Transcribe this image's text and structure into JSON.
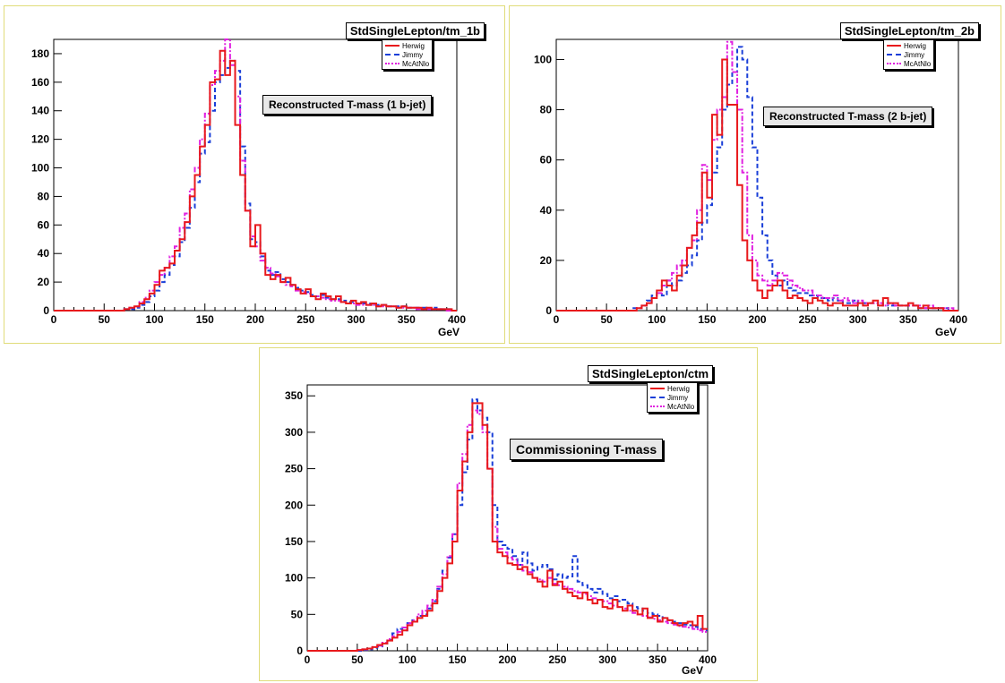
{
  "colors": {
    "Herwig": "#e8191c",
    "Jimmy": "#1a3fd8",
    "McAtNlo": "#e020e0"
  },
  "chart_data": [
    {
      "type": "line",
      "title": "StdSingleLepton/tm_1b",
      "annotation": "Reconstructed T-mass (1 b-jet)",
      "xlabel": "GeV",
      "ylabel": "",
      "xlim": [
        0,
        400
      ],
      "ylim": [
        0,
        190
      ],
      "xticks": [
        0,
        50,
        100,
        150,
        200,
        250,
        300,
        350,
        400
      ],
      "yticks": [
        0,
        20,
        40,
        60,
        80,
        100,
        120,
        140,
        160,
        180
      ],
      "legend": "top-right",
      "bin_width": 5,
      "series": [
        {
          "name": "Herwig",
          "style": "solid",
          "x_start": 0,
          "values": [
            0,
            0,
            0,
            0,
            0,
            0,
            0,
            0,
            0,
            0,
            0,
            0,
            0,
            0,
            1,
            2,
            3,
            5,
            8,
            12,
            18,
            28,
            30,
            33,
            42,
            50,
            62,
            80,
            95,
            115,
            130,
            160,
            162,
            182,
            165,
            175,
            130,
            95,
            70,
            45,
            60,
            40,
            25,
            22,
            25,
            20,
            23,
            18,
            15,
            12,
            15,
            10,
            8,
            12,
            10,
            8,
            10,
            6,
            5,
            7,
            5,
            6,
            4,
            5,
            3,
            4,
            3,
            3,
            2,
            3,
            2,
            2,
            2,
            1,
            2,
            1,
            1,
            1,
            1,
            0
          ]
        },
        {
          "name": "Jimmy",
          "style": "dashed",
          "x_start": 0,
          "values": [
            0,
            0,
            0,
            0,
            0,
            0,
            0,
            0,
            0,
            0,
            0,
            0,
            0,
            0,
            1,
            1,
            2,
            4,
            6,
            10,
            14,
            20,
            25,
            32,
            38,
            48,
            58,
            72,
            90,
            110,
            118,
            140,
            160,
            165,
            170,
            175,
            168,
            115,
            75,
            50,
            48,
            38,
            28,
            25,
            27,
            22,
            20,
            18,
            16,
            14,
            13,
            11,
            10,
            11,
            9,
            8,
            8,
            7,
            6,
            6,
            5,
            5,
            5,
            4,
            4,
            4,
            3,
            3,
            3,
            3,
            2,
            2,
            2,
            2,
            1,
            2,
            1,
            1,
            1,
            0
          ]
        },
        {
          "name": "McAtNlo",
          "style": "dashdot",
          "x_start": 0,
          "values": [
            0,
            0,
            0,
            0,
            0,
            0,
            0,
            0,
            0,
            0,
            0,
            0,
            0,
            0,
            1,
            2,
            3,
            6,
            9,
            14,
            20,
            25,
            30,
            38,
            45,
            58,
            68,
            85,
            100,
            120,
            138,
            158,
            168,
            175,
            190,
            172,
            150,
            105,
            70,
            52,
            45,
            35,
            30,
            26,
            24,
            20,
            18,
            17,
            14,
            13,
            12,
            10,
            10,
            9,
            8,
            7,
            7,
            6,
            5,
            5,
            4,
            4,
            4,
            4,
            3,
            3,
            3,
            3,
            2,
            2,
            2,
            2,
            1,
            1,
            1,
            1,
            1,
            1,
            0,
            0
          ]
        }
      ]
    },
    {
      "type": "line",
      "title": "StdSingleLepton/tm_2b",
      "annotation": "Reconstructed T-mass (2 b-jet)",
      "xlabel": "GeV",
      "ylabel": "",
      "xlim": [
        0,
        400
      ],
      "ylim": [
        0,
        108
      ],
      "xticks": [
        0,
        50,
        100,
        150,
        200,
        250,
        300,
        350,
        400
      ],
      "yticks": [
        0,
        20,
        40,
        60,
        80,
        100
      ],
      "legend": "top-right",
      "bin_width": 5,
      "series": [
        {
          "name": "Herwig",
          "style": "solid",
          "x_start": 0,
          "values": [
            0,
            0,
            0,
            0,
            0,
            0,
            0,
            0,
            0,
            0,
            0,
            0,
            0,
            0,
            0,
            0,
            1,
            2,
            3,
            5,
            8,
            12,
            10,
            8,
            14,
            18,
            25,
            30,
            35,
            55,
            45,
            78,
            70,
            100,
            82,
            82,
            50,
            28,
            20,
            12,
            8,
            5,
            8,
            10,
            12,
            8,
            5,
            6,
            5,
            4,
            3,
            5,
            4,
            3,
            2,
            3,
            3,
            2,
            2,
            2,
            3,
            2,
            3,
            4,
            2,
            5,
            3,
            3,
            2,
            2,
            3,
            2,
            1,
            2,
            1,
            1,
            1,
            0,
            0,
            0
          ]
        },
        {
          "name": "Jimmy",
          "style": "dashed",
          "x_start": 0,
          "values": [
            0,
            0,
            0,
            0,
            0,
            0,
            0,
            0,
            0,
            0,
            0,
            0,
            0,
            0,
            0,
            1,
            1,
            2,
            4,
            6,
            8,
            6,
            12,
            10,
            12,
            15,
            18,
            22,
            28,
            35,
            42,
            55,
            65,
            80,
            90,
            95,
            105,
            100,
            85,
            65,
            45,
            30,
            20,
            14,
            10,
            12,
            9,
            8,
            7,
            7,
            6,
            6,
            5,
            5,
            4,
            5,
            4,
            3,
            3,
            4,
            3,
            3,
            3,
            3,
            2,
            3,
            2,
            2,
            2,
            2,
            2,
            2,
            1,
            1,
            1,
            1,
            1,
            1,
            0,
            0
          ]
        },
        {
          "name": "McAtNlo",
          "style": "dashdot",
          "x_start": 0,
          "values": [
            0,
            0,
            0,
            0,
            0,
            0,
            0,
            0,
            0,
            0,
            0,
            0,
            0,
            0,
            0,
            0,
            1,
            2,
            3,
            5,
            7,
            10,
            12,
            15,
            18,
            20,
            25,
            28,
            40,
            58,
            52,
            68,
            80,
            85,
            107,
            95,
            80,
            55,
            30,
            20,
            14,
            12,
            10,
            12,
            15,
            14,
            12,
            10,
            9,
            8,
            8,
            6,
            6,
            5,
            5,
            6,
            4,
            5,
            4,
            3,
            4,
            3,
            3,
            3,
            3,
            2,
            3,
            2,
            2,
            2,
            2,
            2,
            2,
            1,
            2,
            1,
            1,
            1,
            1,
            0
          ]
        }
      ]
    },
    {
      "type": "line",
      "title": "StdSingleLepton/ctm",
      "annotation": "Commissioning T-mass",
      "xlabel": "GeV",
      "ylabel": "",
      "xlim": [
        0,
        400
      ],
      "ylim": [
        0,
        365
      ],
      "xticks": [
        0,
        50,
        100,
        150,
        200,
        250,
        300,
        350,
        400
      ],
      "yticks": [
        0,
        50,
        100,
        150,
        200,
        250,
        300,
        350
      ],
      "legend": "top-right",
      "bin_width": 5,
      "series": [
        {
          "name": "Herwig",
          "style": "solid",
          "x_start": 0,
          "values": [
            0,
            0,
            0,
            0,
            0,
            0,
            0,
            0,
            0,
            0,
            1,
            2,
            3,
            5,
            8,
            10,
            14,
            18,
            22,
            28,
            35,
            40,
            45,
            48,
            55,
            65,
            82,
            100,
            120,
            150,
            220,
            260,
            300,
            340,
            340,
            310,
            250,
            150,
            135,
            130,
            120,
            118,
            112,
            115,
            105,
            100,
            95,
            88,
            110,
            90,
            95,
            85,
            80,
            75,
            72,
            80,
            70,
            65,
            70,
            60,
            58,
            70,
            60,
            55,
            62,
            55,
            50,
            58,
            45,
            48,
            40,
            45,
            42,
            38,
            35,
            38,
            40,
            35,
            48,
            30
          ]
        },
        {
          "name": "Jimmy",
          "style": "dashed",
          "x_start": 0,
          "values": [
            0,
            0,
            0,
            0,
            0,
            0,
            0,
            0,
            0,
            0,
            0,
            1,
            2,
            4,
            6,
            10,
            15,
            24,
            30,
            28,
            38,
            42,
            48,
            50,
            58,
            68,
            85,
            110,
            128,
            160,
            200,
            245,
            290,
            345,
            330,
            320,
            300,
            200,
            150,
            145,
            140,
            130,
            118,
            135,
            120,
            110,
            115,
            118,
            112,
            98,
            105,
            100,
            102,
            130,
            95,
            90,
            85,
            80,
            85,
            78,
            72,
            75,
            68,
            70,
            65,
            60,
            58,
            55,
            52,
            50,
            48,
            45,
            42,
            40,
            38,
            36,
            35,
            33,
            30,
            28
          ]
        },
        {
          "name": "McAtNlo",
          "style": "dashdot",
          "x_start": 0,
          "values": [
            0,
            0,
            0,
            0,
            0,
            0,
            0,
            0,
            0,
            0,
            1,
            2,
            3,
            5,
            7,
            11,
            16,
            20,
            26,
            32,
            38,
            42,
            50,
            55,
            62,
            70,
            88,
            105,
            130,
            160,
            230,
            270,
            310,
            330,
            325,
            300,
            250,
            170,
            140,
            135,
            128,
            125,
            118,
            110,
            108,
            100,
            98,
            95,
            100,
            92,
            90,
            88,
            85,
            82,
            80,
            78,
            75,
            72,
            70,
            68,
            65,
            62,
            60,
            58,
            55,
            52,
            50,
            48,
            46,
            44,
            42,
            40,
            38,
            36,
            34,
            33,
            32,
            30,
            28,
            26
          ]
        }
      ]
    }
  ]
}
